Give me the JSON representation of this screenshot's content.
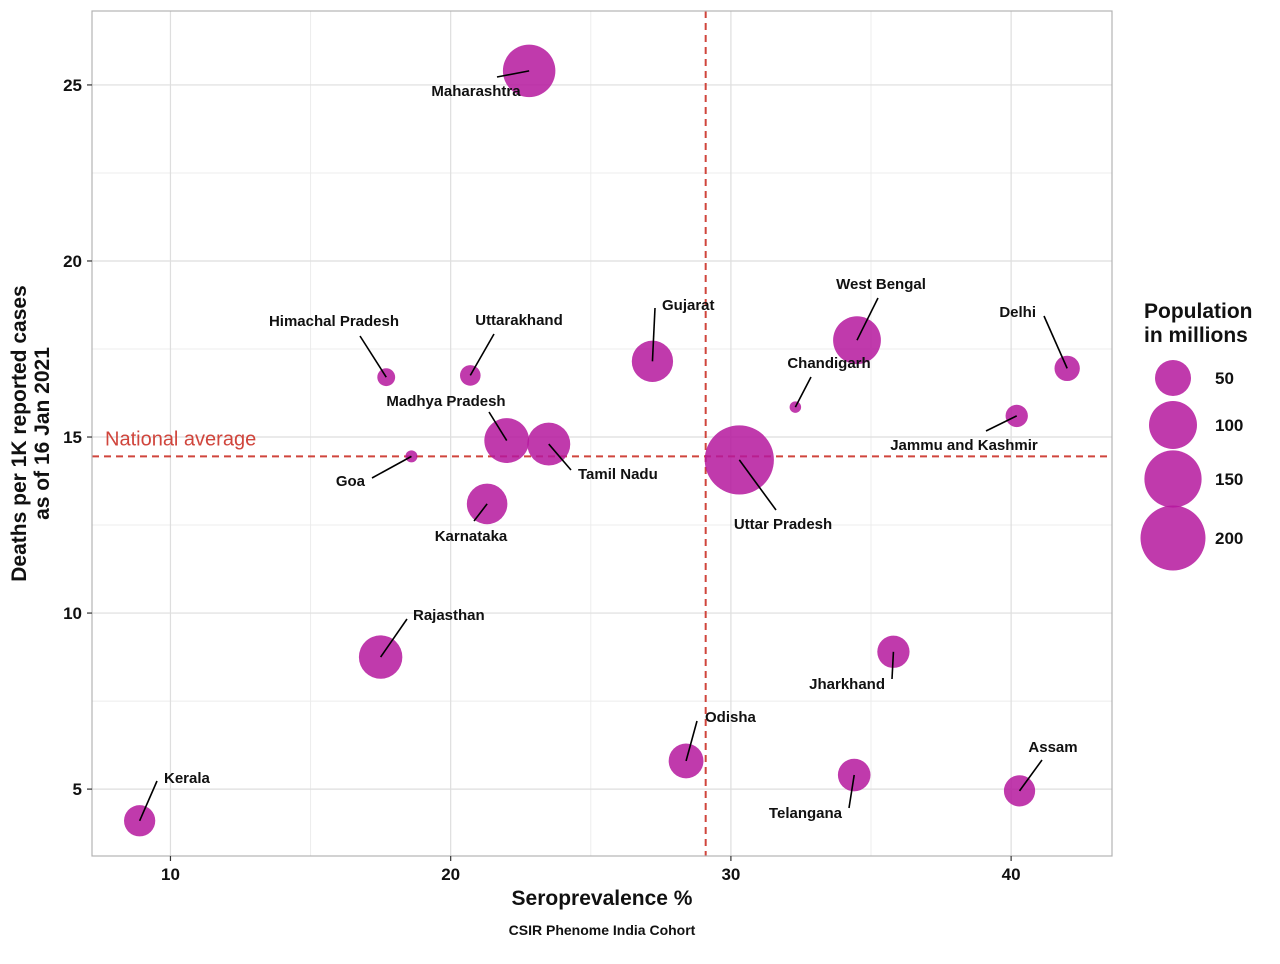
{
  "chart_data": {
    "type": "scatter",
    "xlabel": "Seroprevalence %",
    "ylabel_line1": "Deaths per 1K reported cases",
    "ylabel_line2": "as of 16 Jan 2021",
    "caption": "CSIR Phenome India Cohort",
    "xlim": [
      7.2,
      43.6
    ],
    "ylim": [
      3.1,
      27.1
    ],
    "x_ticks": [
      10,
      20,
      30,
      40
    ],
    "y_ticks": [
      5,
      10,
      15,
      20,
      25
    ],
    "grid": true,
    "point_color": "#b5179e",
    "reference_line_color": "#d0453c",
    "national_average": {
      "x": 29.1,
      "y": 14.45,
      "label": "National average"
    },
    "legend": {
      "title_line1": "Population",
      "title_line2": "in millions",
      "position": "right",
      "entries": [
        {
          "label": "50",
          "value": 50
        },
        {
          "label": "100",
          "value": 100
        },
        {
          "label": "150",
          "value": 150
        },
        {
          "label": "200",
          "value": 200
        }
      ]
    },
    "points": [
      {
        "name": "Maharashtra",
        "x": 22.8,
        "y": 25.4,
        "population": 123
      },
      {
        "name": "Himachal Pradesh",
        "x": 17.7,
        "y": 16.7,
        "population": 7
      },
      {
        "name": "Uttarakhand",
        "x": 20.7,
        "y": 16.75,
        "population": 11
      },
      {
        "name": "Gujarat",
        "x": 27.2,
        "y": 17.15,
        "population": 70
      },
      {
        "name": "West Bengal",
        "x": 34.5,
        "y": 17.75,
        "population": 99
      },
      {
        "name": "Delhi",
        "x": 42.0,
        "y": 16.95,
        "population": 20
      },
      {
        "name": "Chandigarh",
        "x": 32.3,
        "y": 15.85,
        "population": 1.2
      },
      {
        "name": "Jammu and Kashmir",
        "x": 40.2,
        "y": 15.6,
        "population": 14
      },
      {
        "name": "Madhya Pradesh",
        "x": 22.0,
        "y": 14.9,
        "population": 85
      },
      {
        "name": "Tamil Nadu",
        "x": 23.5,
        "y": 14.8,
        "population": 77
      },
      {
        "name": "Goa",
        "x": 18.6,
        "y": 14.45,
        "population": 1.5
      },
      {
        "name": "Uttar Pradesh",
        "x": 30.3,
        "y": 14.35,
        "population": 230
      },
      {
        "name": "Karnataka",
        "x": 21.3,
        "y": 13.1,
        "population": 67
      },
      {
        "name": "Rajasthan",
        "x": 17.5,
        "y": 8.75,
        "population": 79
      },
      {
        "name": "Jharkhand",
        "x": 35.8,
        "y": 8.9,
        "population": 38
      },
      {
        "name": "Odisha",
        "x": 28.4,
        "y": 5.8,
        "population": 46
      },
      {
        "name": "Telangana",
        "x": 34.4,
        "y": 5.4,
        "population": 39
      },
      {
        "name": "Assam",
        "x": 40.3,
        "y": 4.95,
        "population": 35
      },
      {
        "name": "Kerala",
        "x": 8.9,
        "y": 4.1,
        "population": 35
      }
    ]
  }
}
